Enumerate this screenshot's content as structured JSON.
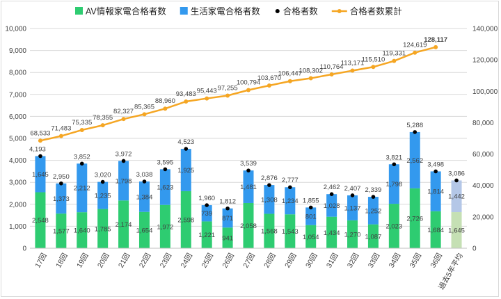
{
  "chart_data": {
    "type": "bar",
    "categories": [
      "17回",
      "18回",
      "19回",
      "20回",
      "21回",
      "22回",
      "23回",
      "24回",
      "25回",
      "26回",
      "27回",
      "28回",
      "29回",
      "30回",
      "31回",
      "32回",
      "33回",
      "34回",
      "35回",
      "36回",
      "過去5年平均"
    ],
    "series": [
      {
        "name": "AV情報家電合格者数",
        "type": "bar",
        "axis": "left",
        "color": "#2ecc71",
        "values": [
          2548,
          1577,
          1640,
          1785,
          2174,
          1654,
          1972,
          2598,
          1221,
          941,
          2058,
          1568,
          1543,
          1054,
          1434,
          1270,
          1087,
          2023,
          2726,
          1684,
          1645
        ]
      },
      {
        "name": "生活家電合格者数",
        "type": "bar",
        "axis": "left",
        "color": "#3399ee",
        "values": [
          1645,
          1373,
          2212,
          1235,
          1798,
          1384,
          1623,
          1925,
          739,
          871,
          1481,
          1308,
          1234,
          801,
          1028,
          1137,
          1252,
          1798,
          2562,
          1814,
          1442
        ]
      },
      {
        "name": "合格者数",
        "type": "scatter",
        "axis": "left",
        "color": "#000000",
        "values": [
          4193,
          2950,
          3852,
          3020,
          3972,
          3038,
          3595,
          4523,
          1960,
          1812,
          3539,
          2876,
          2777,
          1855,
          2462,
          2407,
          2339,
          3821,
          5288,
          3498,
          3086
        ]
      },
      {
        "name": "合格者数累計",
        "type": "line",
        "axis": "right",
        "color": "#f5a623",
        "values": [
          68533,
          71483,
          75335,
          78355,
          82327,
          85365,
          88960,
          93483,
          95443,
          97255,
          100794,
          103670,
          106447,
          108302,
          110764,
          113171,
          115510,
          119331,
          124619,
          128117,
          null
        ]
      }
    ],
    "highlight": {
      "index": 19,
      "color": "#ff0000"
    },
    "average_bar_colors": {
      "bottom": "#c5e0b4",
      "top": "#b4c7e7"
    },
    "y_left": {
      "min": 0,
      "max": 10000,
      "step": 1000
    },
    "y_right": {
      "min": 0,
      "max": 140000,
      "step": 20000
    },
    "legend_position": "top",
    "grid": true
  }
}
